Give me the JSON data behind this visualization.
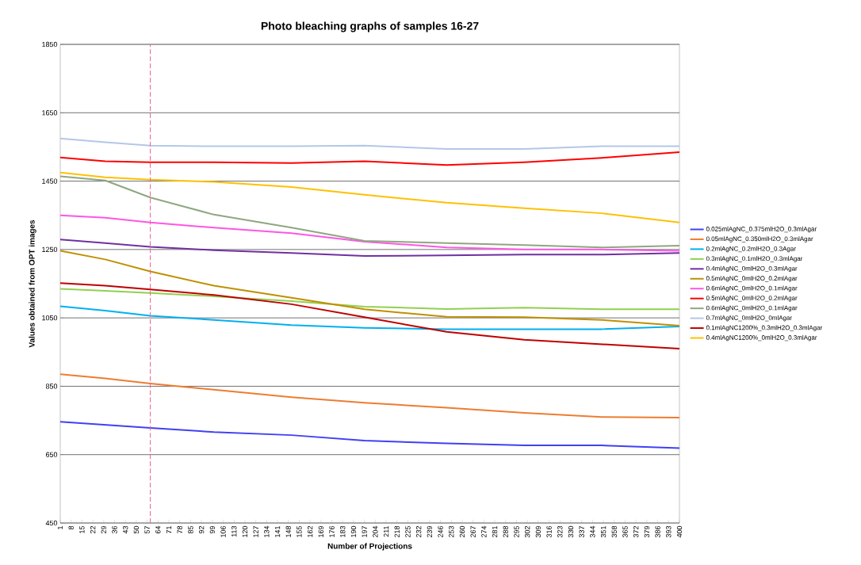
{
  "chart_data": {
    "type": "line",
    "title": "Photo bleaching graphs of samples 16-27",
    "xlabel": "Number of Projections",
    "ylabel": "Values obtained from OPT images",
    "x": [
      1,
      30,
      59,
      100,
      150,
      197,
      250,
      300,
      350,
      400
    ],
    "xlim": [
      1,
      400
    ],
    "xticks": [
      1,
      8,
      15,
      22,
      29,
      36,
      43,
      50,
      57,
      64,
      71,
      78,
      85,
      92,
      99,
      106,
      113,
      120,
      127,
      134,
      141,
      148,
      155,
      162,
      169,
      176,
      183,
      190,
      197,
      204,
      211,
      218,
      225,
      232,
      239,
      246,
      253,
      260,
      267,
      274,
      281,
      288,
      295,
      302,
      309,
      316,
      323,
      330,
      337,
      344,
      351,
      358,
      365,
      372,
      379,
      386,
      393,
      400
    ],
    "ylim": [
      450,
      1850
    ],
    "yticks": [
      450,
      650,
      850,
      1050,
      1250,
      1450,
      1650,
      1850
    ],
    "grid": "y",
    "legend": "right",
    "marker": "none",
    "line_style": "solid",
    "series": [
      {
        "name": "0.025mlAgNC_0.375mlH2O_0.3mlAgar",
        "color": "#4040f5",
        "values": [
          746,
          737,
          728,
          716,
          707,
          691,
          683,
          677,
          677,
          669
        ]
      },
      {
        "name": "0.05mlAgNC_0.350mlH2O_0.3mlAgar",
        "color": "#ed7d31",
        "values": [
          885,
          873,
          858,
          840,
          818,
          802,
          787,
          772,
          760,
          758
        ]
      },
      {
        "name": "0.2mlAgNC_0.2mlH2O_0.3Agar",
        "color": "#00b0f0",
        "values": [
          1084,
          1071,
          1056,
          1044,
          1029,
          1021,
          1017,
          1017,
          1017,
          1025
        ]
      },
      {
        "name": "0.3mlAgNC_0.1mlH2O_0.3mlAgar",
        "color": "#92d050",
        "values": [
          1135,
          1129,
          1123,
          1113,
          1099,
          1083,
          1076,
          1080,
          1075,
          1075
        ]
      },
      {
        "name": "0.4mlAgNC_0mlH2O_0.3mlAgar",
        "color": "#7030a0",
        "values": [
          1279,
          1269,
          1258,
          1248,
          1240,
          1231,
          1233,
          1235,
          1235,
          1240
        ]
      },
      {
        "name": "0.5mlAgNC_0mlH2O_0.2mlAgar",
        "color": "#bf9000",
        "values": [
          1246,
          1221,
          1186,
          1144,
          1109,
          1075,
          1053,
          1052,
          1044,
          1027
        ]
      },
      {
        "name": "0.6mlAgNC_0mlH2O_0.1mlAgar",
        "color": "#ff55e5",
        "values": [
          1350,
          1343,
          1329,
          1314,
          1298,
          1273,
          1256,
          1250,
          1250,
          1246
        ]
      },
      {
        "name": "0.5mlAgNC_0mlH2O_0.2mlAgar",
        "color": "#ff0000",
        "values": [
          1519,
          1508,
          1505,
          1505,
          1503,
          1508,
          1497,
          1505,
          1518,
          1535
        ]
      },
      {
        "name": "0.6mlAgNC_0mlH2O_0.1mlAgar",
        "color": "#8fa680",
        "values": [
          1464,
          1452,
          1402,
          1352,
          1314,
          1275,
          1269,
          1263,
          1256,
          1261
        ]
      },
      {
        "name": "0.7mlAgNC_0mlH2O_0mlAgar",
        "color": "#b4c7e7",
        "values": [
          1575,
          1564,
          1554,
          1552,
          1552,
          1554,
          1544,
          1544,
          1552,
          1552
        ]
      },
      {
        "name": "0.1mlAgNC1200%_0.3mlH2O_0.3mlAgar",
        "color": "#c00000",
        "values": [
          1152,
          1144,
          1133,
          1117,
          1090,
          1052,
          1009,
          986,
          973,
          960
        ]
      },
      {
        "name": "0.4mlAgNC1200%_0mlH2O_0.3mlAgar",
        "color": "#ffc000",
        "values": [
          1475,
          1461,
          1454,
          1448,
          1433,
          1410,
          1387,
          1371,
          1356,
          1329
        ]
      }
    ],
    "ref_lines": [
      {
        "axis": "x",
        "value": 59,
        "color": "#f06090",
        "line_style": "dashed"
      }
    ]
  }
}
